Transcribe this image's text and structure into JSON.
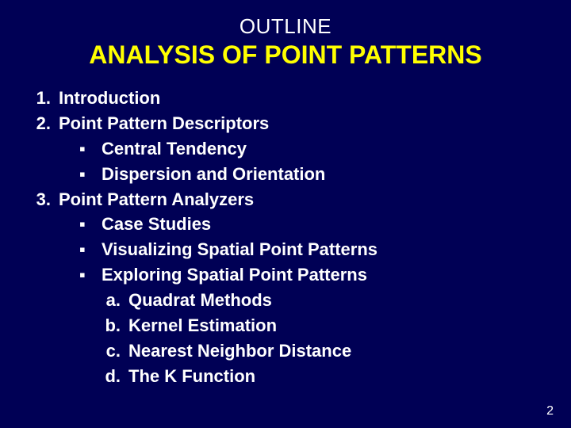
{
  "background_color": "#000055",
  "text_color": "#ffffff",
  "title_color": "#ffff00",
  "pretitle": "OUTLINE",
  "title": "ANALYSIS OF POINT PATTERNS",
  "items": {
    "n1": {
      "num": "1.",
      "text": "Introduction"
    },
    "n2": {
      "num": "2.",
      "text": "Point Pattern Descriptors"
    },
    "b1": {
      "mark": "▪",
      "text": "Central Tendency"
    },
    "b2": {
      "mark": "▪",
      "text": "Dispersion and Orientation"
    },
    "n3": {
      "num": "3.",
      "text": "Point Pattern Analyzers"
    },
    "b3": {
      "mark": "▪",
      "text": "Case Studies"
    },
    "b4": {
      "mark": "▪",
      "text": "Visualizing Spatial Point Patterns"
    },
    "b5": {
      "mark": "▪",
      "text": "Exploring Spatial Point Patterns"
    },
    "l1": {
      "letter": "a.",
      "text": "Quadrat Methods"
    },
    "l2": {
      "letter": "b.",
      "text": "Kernel Estimation"
    },
    "l3": {
      "letter": "c.",
      "text": "Nearest Neighbor Distance"
    },
    "l4": {
      "letter": "d.",
      "text": "The K Function"
    }
  },
  "page_number": "2"
}
